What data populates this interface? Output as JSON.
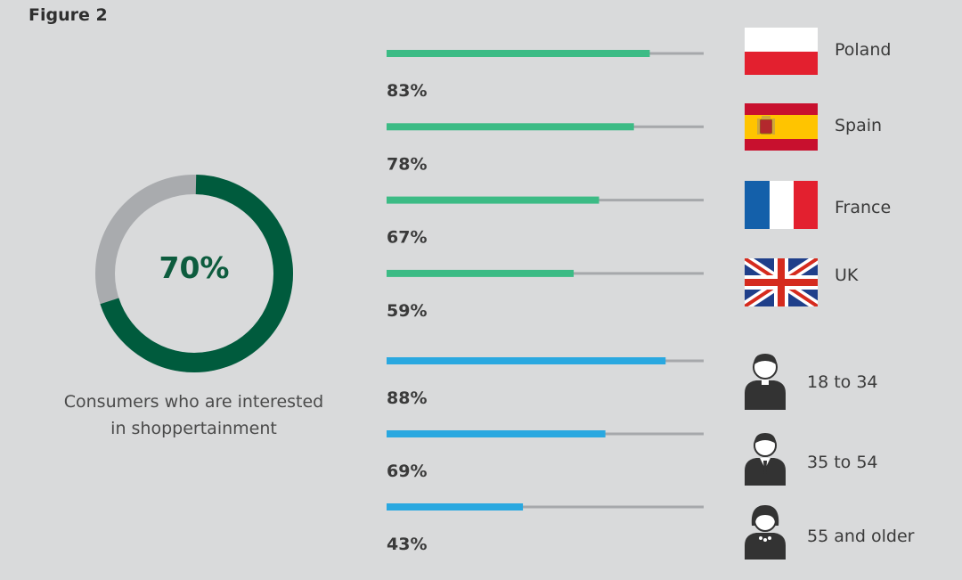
{
  "figure_label": "Figure 2",
  "colors": {
    "donut_main": "#005b3d",
    "donut_rest": "#a9abae",
    "country_bar": "#3cbb85",
    "age_bar": "#2aa8e0",
    "track": "#a6a8ab"
  },
  "donut": {
    "value": 70,
    "value_label": "70%",
    "caption": [
      "Consumers who are interested",
      "in shoppertainment"
    ]
  },
  "chart_data": [
    {
      "type": "pie",
      "values": [
        70,
        30
      ],
      "label": "70%",
      "caption": "Consumers who are interested in shoppertainment"
    },
    {
      "type": "bar",
      "orientation": "horizontal",
      "categories": [
        "Poland",
        "Spain",
        "France",
        "UK"
      ],
      "values": [
        83,
        78,
        67,
        59
      ],
      "value_labels": [
        "83%",
        "78%",
        "67%",
        "59%"
      ],
      "icons": [
        "poland-flag-icon",
        "spain-flag-icon",
        "france-flag-icon",
        "uk-flag-icon"
      ],
      "xlim": [
        0,
        100
      ]
    },
    {
      "type": "bar",
      "orientation": "horizontal",
      "categories": [
        "18 to 34",
        "35 to 54",
        "55 and older"
      ],
      "values": [
        88,
        69,
        43
      ],
      "value_labels": [
        "88%",
        "69%",
        "43%"
      ],
      "icons": [
        "young-person-icon",
        "businessman-icon",
        "older-woman-icon"
      ],
      "xlim": [
        0,
        100
      ]
    }
  ]
}
